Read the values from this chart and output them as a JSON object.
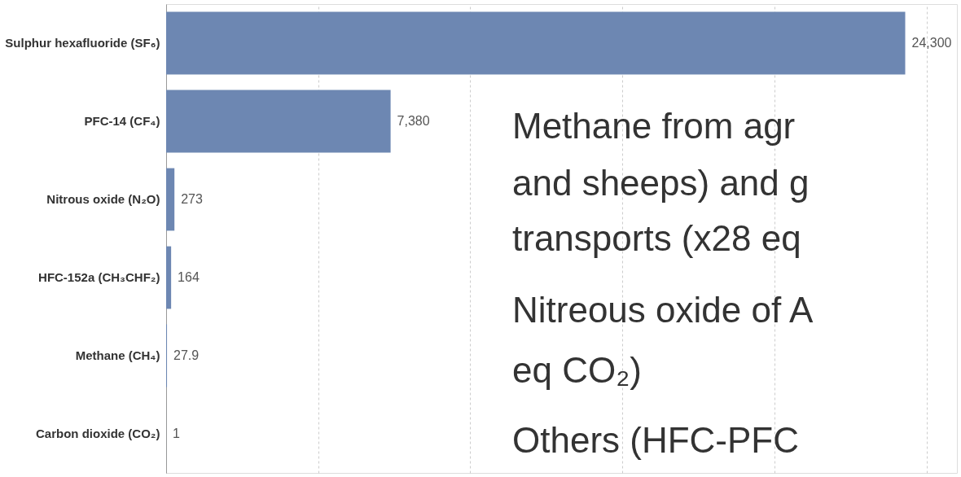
{
  "chart_data": {
    "type": "bar",
    "orientation": "horizontal",
    "categories": [
      "Sulphur hexafluoride (SF₆)",
      "PFC-14 (CF₄)",
      "Nitrous oxide (N₂O)",
      "HFC-152a (CH₃CHF₂)",
      "Methane (CH₄)",
      "Carbon dioxide (CO₂)"
    ],
    "values": [
      24300,
      7380,
      273,
      164,
      27.9,
      1
    ],
    "value_labels": [
      "24,300",
      "7,380",
      "273",
      "164",
      "27.9",
      "1"
    ],
    "color": "#6d87b2",
    "xlim": [
      0,
      26000
    ],
    "xticks": [
      {
        "value": 0,
        "label": null
      },
      {
        "value": 5000,
        "label": null
      },
      {
        "value": 10000,
        "label": null
      },
      {
        "value": 15000,
        "label": null
      },
      {
        "value": 20000,
        "label": null
      },
      {
        "value": 25000,
        "label": null
      }
    ],
    "tick_labels": "y",
    "grid": "x",
    "annotations": [
      "Methane from agr",
      "and sheeps) and g",
      "transports (x28 eq",
      "Nitreous oxide of A",
      "eq CO₂)",
      "Others (HFC-PFC"
    ]
  }
}
